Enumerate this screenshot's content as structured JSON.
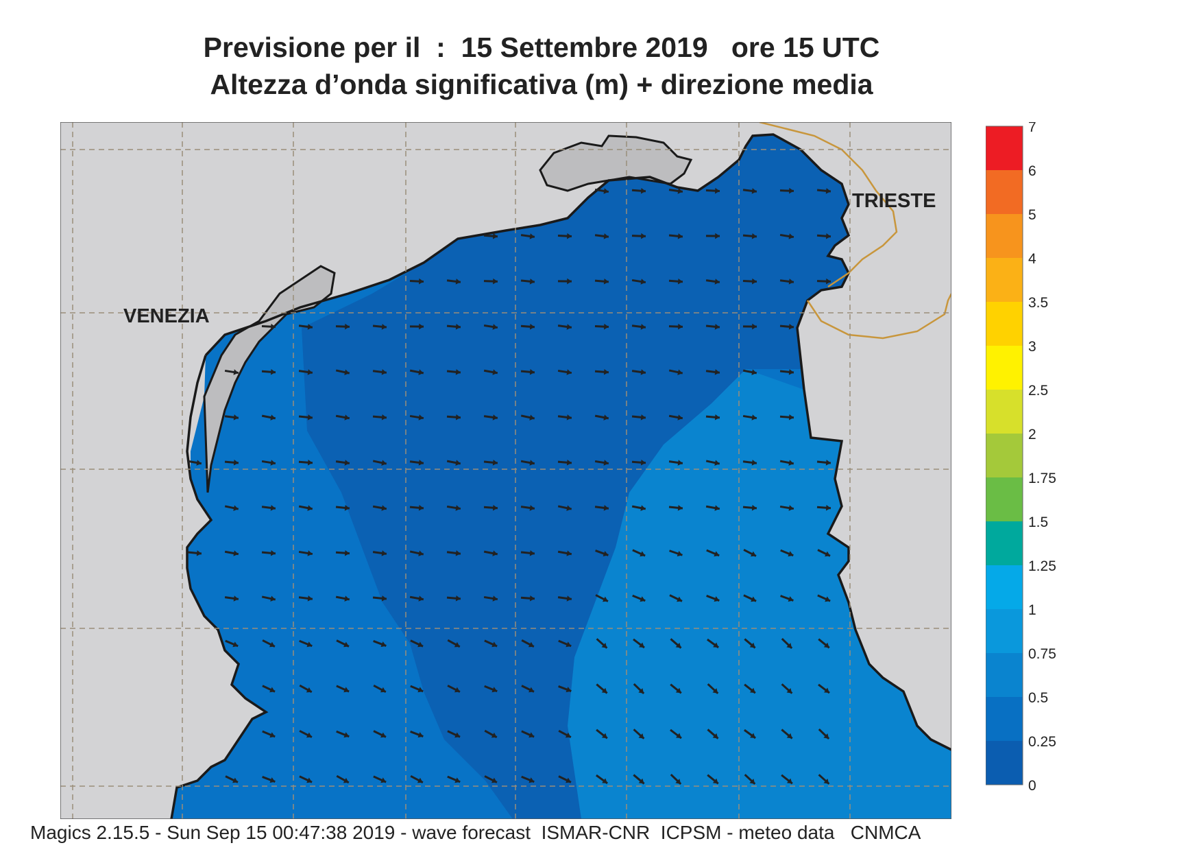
{
  "title": {
    "line1": "Previsione per il  :  15 Settembre 2019   ore 15 UTC",
    "line2": "Altezza d’onda significativa (m) + direzione media"
  },
  "map": {
    "cities": [
      {
        "name": "VENEZIA",
        "key": "venezia"
      },
      {
        "name": "TRIESTE",
        "key": "trieste"
      }
    ],
    "colors": {
      "land": "#d3d3d5",
      "sea_0_0.25": "#0b61b3",
      "sea_0.25_0.5": "#0873c6",
      "sea_0.5_0.75": "#0a84cf",
      "coastline": "#1a1a1a",
      "border": "#c8963c",
      "grid": "#9a8e7a",
      "arrow": "#222222"
    },
    "arrow_direction_summary": "mostly eastward in north, southeastward in south"
  },
  "legend": {
    "title": "",
    "bins": [
      {
        "label": "0",
        "color": "#0b5db0"
      },
      {
        "label": "0.25",
        "color": "#0870c3"
      },
      {
        "label": "0.5",
        "color": "#0a84cf"
      },
      {
        "label": "0.75",
        "color": "#0a98dc"
      },
      {
        "label": "1",
        "color": "#05a9e8"
      },
      {
        "label": "1.25",
        "color": "#00a99d"
      },
      {
        "label": "1.5",
        "color": "#6abd45"
      },
      {
        "label": "1.75",
        "color": "#a4c93a"
      },
      {
        "label": "2",
        "color": "#d7e02b"
      },
      {
        "label": "2.5",
        "color": "#fff200"
      },
      {
        "label": "3",
        "color": "#ffd200"
      },
      {
        "label": "3.5",
        "color": "#fbb116"
      },
      {
        "label": "4",
        "color": "#f7941d"
      },
      {
        "label": "5",
        "color": "#f26b23"
      },
      {
        "label": "6",
        "color": "#ed1c24"
      },
      {
        "label": "7",
        "color": "#ec1275"
      }
    ]
  },
  "footer": "Magics 2.15.5 - Sun Sep 15 00:47:38 2019 - wave forecast  ISMAR-CNR  ICPSM - meteo data   CNMCA"
}
